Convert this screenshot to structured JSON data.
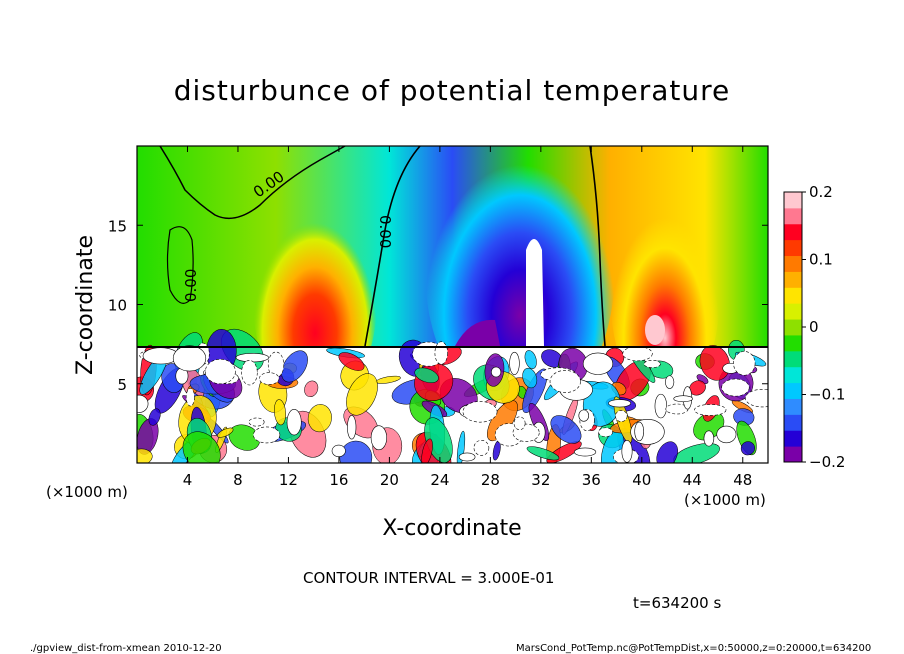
{
  "chart_data": {
    "type": "heatmap",
    "title": "disturbunce of potential temperature",
    "xlabel": "X-coordinate",
    "ylabel": "Z-coordinate",
    "x_unit_left": "(×1000 m)",
    "x_unit_right": "(×1000 m)",
    "xlim": [
      0,
      50
    ],
    "ylim": [
      0,
      20
    ],
    "x_ticks": [
      4,
      8,
      12,
      16,
      20,
      24,
      28,
      32,
      36,
      40,
      44,
      48
    ],
    "y_ticks": [
      5,
      10,
      15
    ],
    "colorbar": {
      "range": [
        -0.2,
        0.2
      ],
      "tick_values": [
        0.2,
        0.1,
        0,
        -0.1,
        -0.2
      ],
      "tick_labels": [
        "0.2",
        "0.1",
        "0",
        "−0.1",
        "−0.2"
      ],
      "colors": [
        "#7a00a8",
        "#2400d6",
        "#2a4cf5",
        "#2f8cff",
        "#00c8ff",
        "#00e6d8",
        "#00dc78",
        "#22dd00",
        "#8ee000",
        "#d8f000",
        "#ffe400",
        "#ffb000",
        "#ff7a00",
        "#ff3a00",
        "#ff0020",
        "#ff7890",
        "#ffc8d0"
      ]
    },
    "contour_labels": [
      "0.00",
      "0.00",
      "0.00"
    ],
    "features": [
      {
        "kind": "upper_region",
        "x_range": [
          0,
          50
        ],
        "z_range": [
          7.5,
          20
        ],
        "description_values": {
          "min": -0.2,
          "max": 0.2
        }
      },
      {
        "kind": "warm_plume",
        "x_center": 14.5,
        "value": 0.15
      },
      {
        "kind": "cold_plume",
        "x_center": 30.5,
        "value": -0.2
      },
      {
        "kind": "warm_plume",
        "x_center": 42,
        "value": 0.18
      },
      {
        "kind": "turbulent_layer",
        "z_range": [
          0,
          7.5
        ]
      }
    ]
  },
  "annotations": {
    "contour_interval": "CONTOUR INTERVAL = 3.000E-01",
    "time": "t=634200 s",
    "footer_left": "./gpview_dist-from-xmean  2010-12-20",
    "footer_right": "MarsCond_PotTemp.nc@PotTempDist,x=0:50000,z=0:20000,t=634200"
  }
}
